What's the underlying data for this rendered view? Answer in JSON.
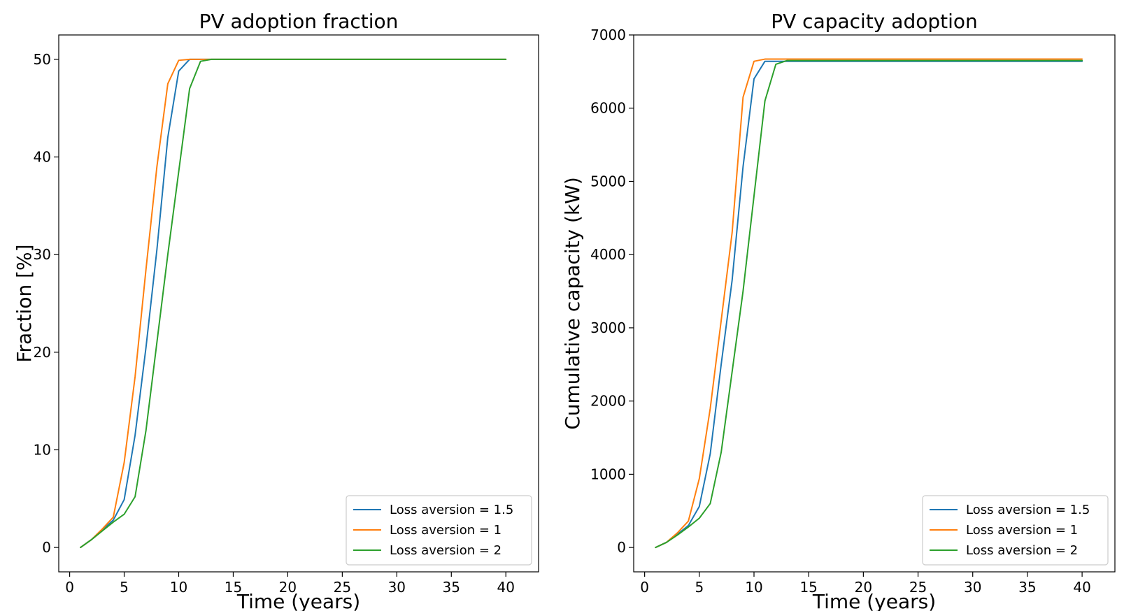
{
  "chart_data": [
    {
      "type": "line",
      "title": "PV adoption fraction",
      "xlabel": "Time (years)",
      "ylabel": "Fraction [%]",
      "xlim": [
        -1,
        43
      ],
      "ylim": [
        -2.5,
        52.5
      ],
      "xticks": [
        0,
        5,
        10,
        15,
        20,
        25,
        30,
        35,
        40
      ],
      "yticks": [
        0,
        10,
        20,
        30,
        40,
        50
      ],
      "grid": false,
      "legend": "lower-right",
      "series": [
        {
          "name": "Loss aversion = 1.5",
          "color": "#1f77b4",
          "x": [
            1,
            2,
            3,
            4,
            5,
            6,
            7,
            8,
            9,
            10,
            11,
            12,
            13,
            40
          ],
          "y": [
            0,
            0.8,
            1.8,
            2.8,
            4.9,
            11.5,
            20.5,
            30.5,
            42.0,
            48.8,
            50.0,
            50.0,
            50.0,
            50.0
          ]
        },
        {
          "name": "Loss aversion = 1",
          "color": "#ff7f0e",
          "x": [
            1,
            2,
            3,
            4,
            5,
            6,
            7,
            8,
            9,
            10,
            11,
            12,
            13,
            40
          ],
          "y": [
            0,
            0.8,
            1.9,
            3.1,
            8.7,
            17.5,
            28.5,
            39.0,
            47.5,
            49.9,
            50.0,
            50.0,
            50.0,
            50.0
          ]
        },
        {
          "name": "Loss aversion = 2",
          "color": "#2ca02c",
          "x": [
            1,
            2,
            3,
            4,
            5,
            6,
            7,
            8,
            9,
            10,
            11,
            12,
            13,
            40
          ],
          "y": [
            0,
            0.8,
            1.7,
            2.6,
            3.4,
            5.2,
            12.0,
            21.0,
            30.0,
            38.5,
            47.0,
            49.8,
            50.0,
            50.0
          ]
        }
      ]
    },
    {
      "type": "line",
      "title": "PV capacity adoption",
      "xlabel": "Time (years)",
      "ylabel": "Cumulative capacity (kW)",
      "xlim": [
        -1,
        43
      ],
      "ylim": [
        -333,
        7000
      ],
      "xticks": [
        0,
        5,
        10,
        15,
        20,
        25,
        30,
        35,
        40
      ],
      "yticks": [
        0,
        1000,
        2000,
        3000,
        4000,
        5000,
        6000,
        7000
      ],
      "grid": false,
      "legend": "lower-right",
      "series": [
        {
          "name": "Loss aversion = 1.5",
          "color": "#1f77b4",
          "x": [
            1,
            2,
            3,
            4,
            5,
            6,
            7,
            8,
            9,
            10,
            11,
            12,
            13,
            40
          ],
          "y": [
            0,
            70,
            180,
            300,
            560,
            1280,
            2500,
            3650,
            5200,
            6400,
            6640,
            6640,
            6640,
            6640
          ]
        },
        {
          "name": "Loss aversion = 1",
          "color": "#ff7f0e",
          "x": [
            1,
            2,
            3,
            4,
            5,
            6,
            7,
            8,
            9,
            10,
            11,
            12,
            13,
            40
          ],
          "y": [
            0,
            70,
            200,
            360,
            940,
            1900,
            3100,
            4300,
            6150,
            6640,
            6670,
            6670,
            6670,
            6670
          ]
        },
        {
          "name": "Loss aversion = 2",
          "color": "#2ca02c",
          "x": [
            1,
            2,
            3,
            4,
            5,
            6,
            7,
            8,
            9,
            10,
            11,
            12,
            13,
            40
          ],
          "y": [
            0,
            70,
            170,
            280,
            400,
            600,
            1300,
            2400,
            3500,
            4800,
            6100,
            6600,
            6650,
            6650
          ]
        }
      ]
    }
  ]
}
